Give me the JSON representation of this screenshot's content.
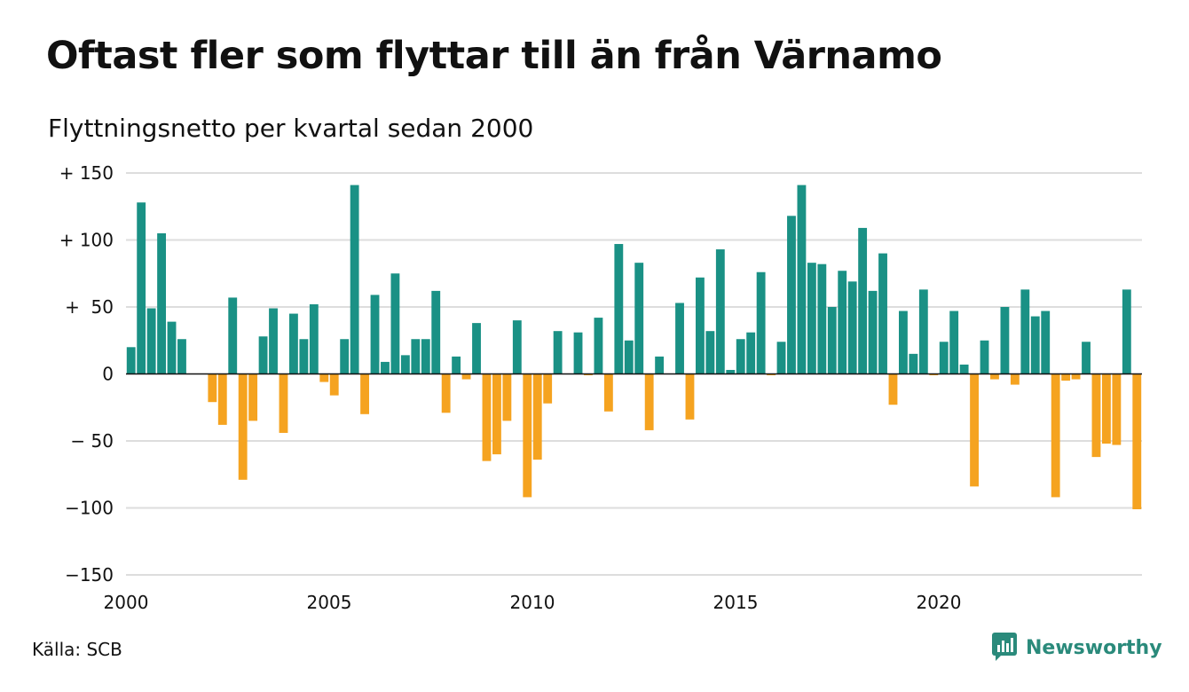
{
  "title": "Oftast fler som flyttar till än från Värnamo",
  "subtitle": "Flyttningsnetto per kvartal sedan 2000",
  "source": "Källa: SCB",
  "brand": "Newsworthy",
  "colors": {
    "positive": "#1a9185",
    "negative": "#f5a320",
    "grid": "#dddddd",
    "brand": "#2a8a7b"
  },
  "chart_data": {
    "type": "bar",
    "ylim": [
      -150,
      150
    ],
    "yticks": [
      150,
      100,
      50,
      0,
      -50,
      -100,
      -150
    ],
    "ytick_labels": [
      "+ 150",
      "+ 100",
      "+  50",
      "0",
      "− 50",
      "−100",
      "−150"
    ],
    "xticks": [
      2000,
      2005,
      2010,
      2015,
      2020
    ],
    "grid": true,
    "x_start_year": 2000,
    "periods_per_year": 4,
    "values": [
      20,
      128,
      49,
      105,
      39,
      26,
      0,
      0,
      -21,
      -38,
      57,
      -79,
      -35,
      28,
      49,
      -44,
      45,
      26,
      52,
      -6,
      -16,
      26,
      141,
      -30,
      59,
      9,
      75,
      14,
      26,
      26,
      62,
      -29,
      13,
      -4,
      38,
      -65,
      -60,
      -35,
      40,
      -92,
      -64,
      -22,
      32,
      0,
      31,
      -1,
      42,
      -28,
      97,
      25,
      83,
      -42,
      13,
      0,
      53,
      -34,
      72,
      32,
      93,
      3,
      26,
      31,
      76,
      -1,
      24,
      118,
      141,
      83,
      82,
      50,
      77,
      69,
      109,
      62,
      90,
      -23,
      47,
      15,
      63,
      -1,
      24,
      47,
      7,
      -84,
      25,
      -4,
      50,
      -8,
      63,
      43,
      47,
      -92,
      -5,
      -4,
      24,
      -62,
      -52,
      -53,
      63,
      -101
    ]
  }
}
